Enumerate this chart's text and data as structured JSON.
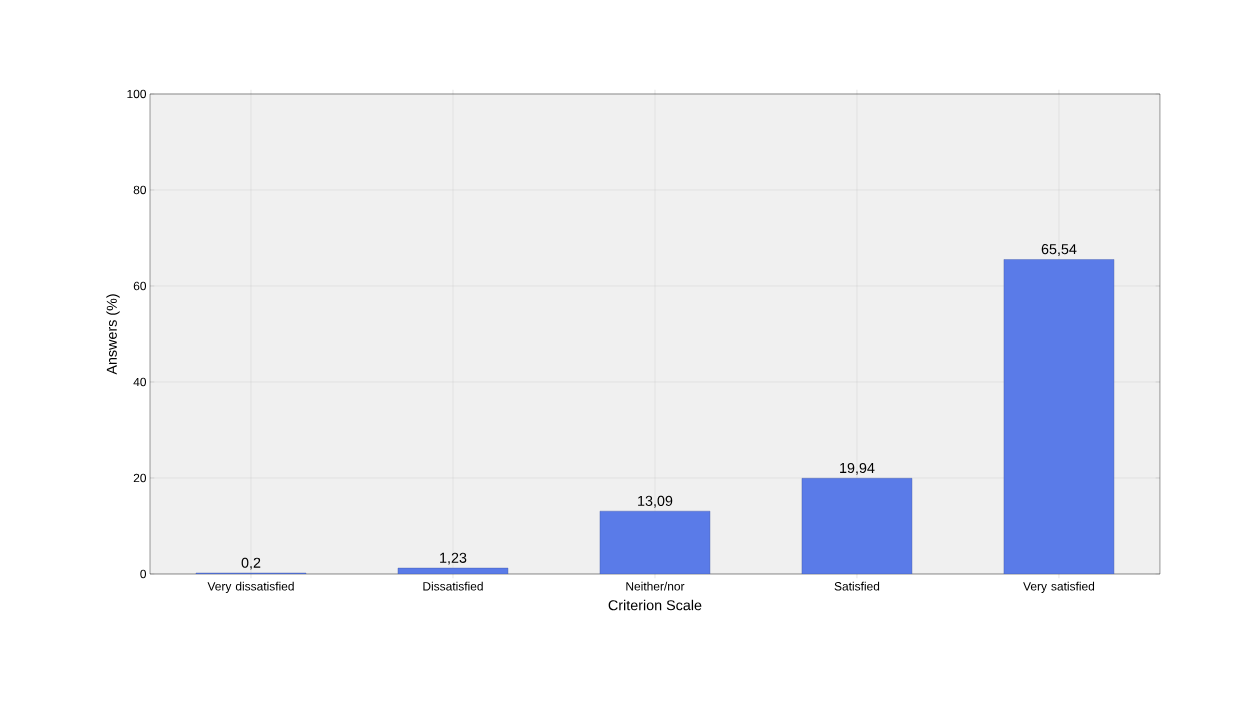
{
  "chart_data": {
    "type": "bar",
    "categories": [
      "Very dissatisfied",
      "Dissatisfied",
      "Neither/nor",
      "Satisfied",
      "Very satisfied"
    ],
    "values": [
      0.2,
      1.23,
      13.09,
      19.94,
      65.54
    ],
    "value_labels": [
      "0,2",
      "1,23",
      "13,09",
      "19,94",
      "65,54"
    ],
    "color": "#5a7be8",
    "xlabel": "Criterion Scale",
    "ylabel": "Answers (%)",
    "ylim": [
      0,
      100
    ],
    "yticks": [
      0,
      20,
      40,
      60,
      80,
      100
    ],
    "grid": true
  }
}
